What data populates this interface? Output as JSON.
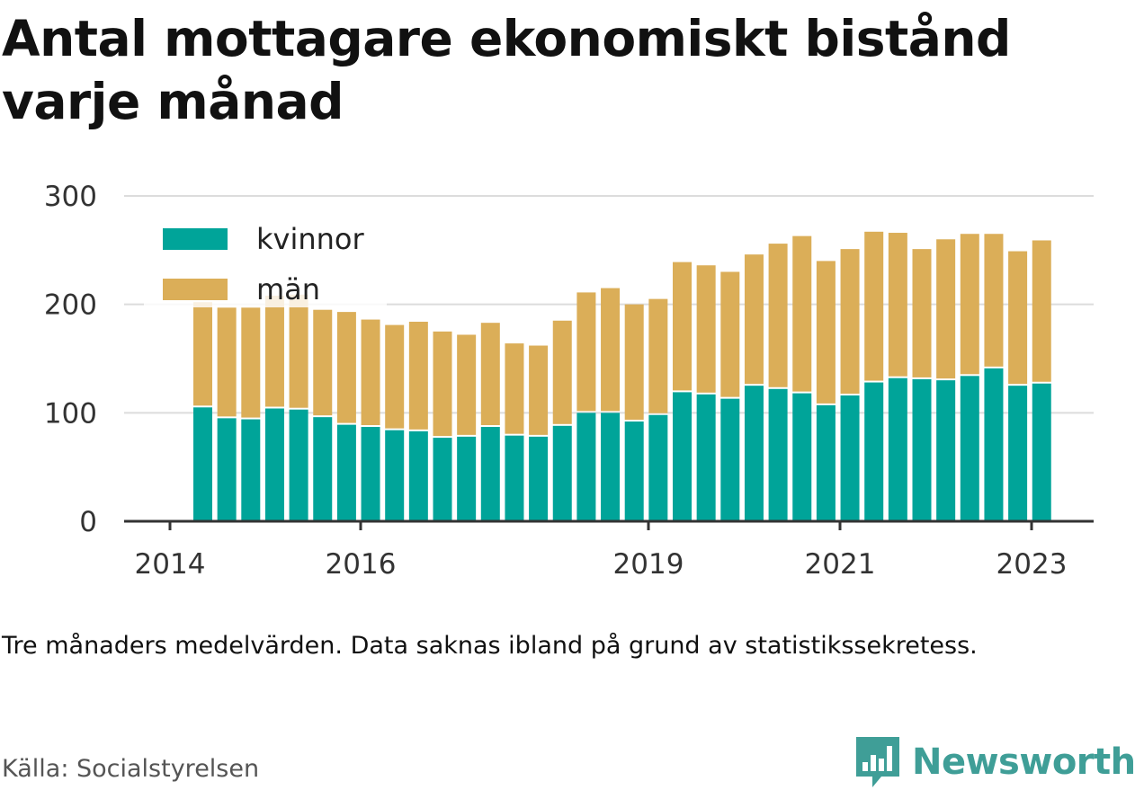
{
  "title": "Antal mottagare ekonomiskt bistånd varje månad",
  "note": "Tre månaders medelvärden. Data saknas ibland på grund av statistikssekretess.",
  "source": "Källa: Socialstyrelsen",
  "brand": {
    "name": "Newsworthy",
    "icon": "bar-chart-speech-bubble-icon",
    "color": "#3f9e97"
  },
  "chart_data": {
    "type": "bar",
    "stacked": true,
    "ylim": [
      0,
      300
    ],
    "yticks": [
      0,
      100,
      200,
      300
    ],
    "grid": true,
    "legend_position": "top-left",
    "x_tick_labels": [
      "2014",
      "2016",
      "2019",
      "2021",
      "2023"
    ],
    "series": [
      {
        "name": "kvinnor",
        "color": "#00a499",
        "values": [
          105,
          95,
          94,
          104,
          103,
          96,
          89,
          87,
          84,
          83,
          77,
          78,
          87,
          79,
          78,
          88,
          100,
          100,
          92,
          98,
          119,
          117,
          113,
          125,
          122,
          118,
          107,
          116,
          128,
          132,
          131,
          130,
          134,
          141,
          125,
          127
        ]
      },
      {
        "name": "män",
        "color": "#dbae58",
        "values": [
          97,
          102,
          103,
          104,
          106,
          99,
          104,
          99,
          97,
          101,
          98,
          94,
          96,
          85,
          84,
          97,
          111,
          115,
          108,
          107,
          120,
          119,
          117,
          121,
          134,
          145,
          133,
          135,
          139,
          134,
          120,
          130,
          131,
          124,
          124,
          132
        ]
      }
    ]
  }
}
